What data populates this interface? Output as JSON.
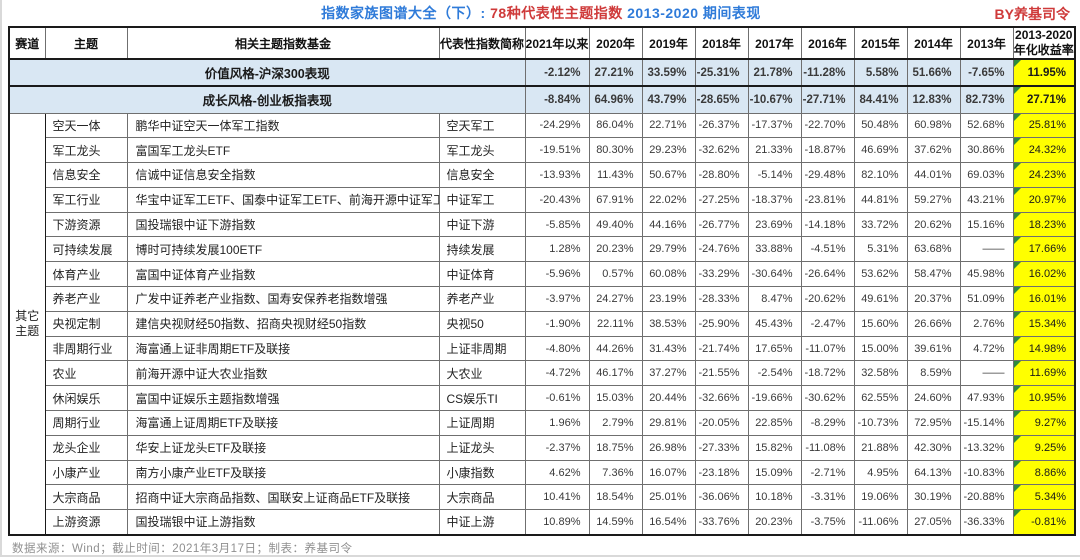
{
  "title": {
    "part1": "指数家族图谱大全（下）: ",
    "part2": "78种代表性主题指数",
    "part3": " 2013-2020 期间表现",
    "byline": "BY养基司令"
  },
  "colors": {
    "title_blue": "#2f7bd9",
    "title_red": "#cf3a3a",
    "banner_bg": "#d9e7f3",
    "highlight_yellow": "#ffff00",
    "positive_red": "#c94743",
    "negative_green": "#35a970",
    "flag_green": "#2e8b3d"
  },
  "footer": {
    "text": "数据来源：Wind；截止时间：2021年3月17日；制表：养基司令"
  },
  "chart_data": {
    "type": "table",
    "title": "指数家族图谱大全（下）: 78种代表性主题指数 2013-2020 期间表现",
    "text_headers": [
      "赛道",
      "主题",
      "相关主题指数基金",
      "代表性指数简称"
    ],
    "year_headers": [
      "2021年以来",
      "2020年",
      "2019年",
      "2018年",
      "2017年",
      "2016年",
      "2015年",
      "2014年",
      "2013年"
    ],
    "annual_header": {
      "line1": "2013-2020",
      "line2": "年化收益率"
    },
    "track": {
      "line1": "其它",
      "line2": "主题"
    },
    "banners": [
      {
        "label": "价值风格-沪深300表现",
        "values": [
          "-2.12%",
          "27.21%",
          "33.59%",
          "-25.31%",
          "21.78%",
          "-11.28%",
          "5.58%",
          "51.66%",
          "-7.65%"
        ],
        "annual": "11.95%",
        "flag": true
      },
      {
        "label": "成长风格-创业板指表现",
        "values": [
          "-8.84%",
          "64.96%",
          "43.79%",
          "-28.65%",
          "-10.67%",
          "-27.71%",
          "84.41%",
          "12.83%",
          "82.73%"
        ],
        "annual": "27.71%",
        "flag": true
      }
    ],
    "rows": [
      {
        "theme": "空天一体",
        "funds": "鹏华中证空天一体军工指数",
        "index": "空天军工",
        "values": [
          "-24.29%",
          "86.04%",
          "22.71%",
          "-26.37%",
          "-17.37%",
          "-22.70%",
          "50.48%",
          "60.98%",
          "52.68%"
        ],
        "annual": "25.81%",
        "flag": true
      },
      {
        "theme": "军工龙头",
        "funds": "富国军工龙头ETF",
        "index": "军工龙头",
        "values": [
          "-19.51%",
          "80.30%",
          "29.23%",
          "-32.62%",
          "21.33%",
          "-18.87%",
          "46.69%",
          "37.62%",
          "30.86%"
        ],
        "annual": "24.32%",
        "flag": true
      },
      {
        "theme": "信息安全",
        "funds": "信诚中证信息安全指数",
        "index": "信息安全",
        "values": [
          "-13.93%",
          "11.43%",
          "50.67%",
          "-28.80%",
          "-5.14%",
          "-29.48%",
          "82.10%",
          "44.01%",
          "69.03%"
        ],
        "annual": "24.23%",
        "flag": true
      },
      {
        "theme": "军工行业",
        "funds": "华宝中证军工ETF、国泰中证军工ETF、前海开源中证军工指数",
        "index": "中证军工",
        "values": [
          "-20.43%",
          "67.91%",
          "22.02%",
          "-27.25%",
          "-18.37%",
          "-23.81%",
          "44.81%",
          "59.27%",
          "43.21%"
        ],
        "annual": "20.97%",
        "flag": true
      },
      {
        "theme": "下游资源",
        "funds": "国投瑞银中证下游指数",
        "index": "中证下游",
        "values": [
          "-5.85%",
          "49.40%",
          "44.16%",
          "-26.77%",
          "23.69%",
          "-14.18%",
          "33.72%",
          "20.62%",
          "15.16%"
        ],
        "annual": "18.23%",
        "flag": true
      },
      {
        "theme": "可持续发展",
        "funds": "博时可持续发展100ETF",
        "index": "持续发展",
        "values": [
          "1.28%",
          "20.23%",
          "29.79%",
          "-24.76%",
          "33.88%",
          "-4.51%",
          "5.31%",
          "63.68%",
          "——"
        ],
        "annual": "17.66%",
        "flag": true
      },
      {
        "theme": "体育产业",
        "funds": "富国中证体育产业指数",
        "index": "中证体育",
        "values": [
          "-5.96%",
          "0.57%",
          "60.08%",
          "-33.29%",
          "-30.64%",
          "-26.64%",
          "53.62%",
          "58.47%",
          "45.98%"
        ],
        "annual": "16.02%",
        "flag": true
      },
      {
        "theme": "养老产业",
        "funds": "广发中证养老产业指数、国寿安保养老指数增强",
        "index": "养老产业",
        "values": [
          "-3.97%",
          "24.27%",
          "23.19%",
          "-28.33%",
          "8.47%",
          "-20.62%",
          "49.61%",
          "20.37%",
          "51.09%"
        ],
        "annual": "16.01%",
        "flag": true
      },
      {
        "theme": "央视定制",
        "funds": "建信央视财经50指数、招商央视财经50指数",
        "index": "央视50",
        "values": [
          "-1.90%",
          "22.11%",
          "38.53%",
          "-25.90%",
          "45.43%",
          "-2.47%",
          "15.60%",
          "26.66%",
          "2.76%"
        ],
        "annual": "15.34%",
        "flag": true
      },
      {
        "theme": "非周期行业",
        "funds": "海富通上证非周期ETF及联接",
        "index": "上证非周期",
        "values": [
          "-4.80%",
          "44.26%",
          "31.43%",
          "-21.74%",
          "17.65%",
          "-11.07%",
          "15.00%",
          "39.61%",
          "4.72%"
        ],
        "annual": "14.98%",
        "flag": true
      },
      {
        "theme": "农业",
        "funds": "前海开源中证大农业指数",
        "index": "大农业",
        "values": [
          "-4.72%",
          "46.17%",
          "37.27%",
          "-21.55%",
          "-2.54%",
          "-18.72%",
          "32.58%",
          "8.59%",
          "——"
        ],
        "annual": "11.69%",
        "flag": true
      },
      {
        "theme": "休闲娱乐",
        "funds": "富国中证娱乐主题指数增强",
        "index": "CS娱乐TI",
        "values": [
          "-0.61%",
          "15.03%",
          "20.44%",
          "-32.66%",
          "-19.66%",
          "-30.62%",
          "62.55%",
          "24.60%",
          "47.93%"
        ],
        "annual": "10.95%",
        "flag": true
      },
      {
        "theme": "周期行业",
        "funds": "海富通上证周期ETF及联接",
        "index": "上证周期",
        "values": [
          "1.96%",
          "2.79%",
          "29.81%",
          "-20.05%",
          "22.85%",
          "-8.29%",
          "-10.73%",
          "72.95%",
          "-15.14%"
        ],
        "annual": "9.27%",
        "flag": true
      },
      {
        "theme": "龙头企业",
        "funds": "华安上证龙头ETF及联接",
        "index": "上证龙头",
        "values": [
          "-2.37%",
          "18.75%",
          "26.98%",
          "-27.33%",
          "15.82%",
          "-11.08%",
          "21.88%",
          "42.30%",
          "-13.32%"
        ],
        "annual": "9.25%",
        "flag": true
      },
      {
        "theme": "小康产业",
        "funds": "南方小康产业ETF及联接",
        "index": "小康指数",
        "values": [
          "4.62%",
          "7.36%",
          "16.07%",
          "-23.18%",
          "15.09%",
          "-2.71%",
          "4.95%",
          "64.13%",
          "-10.83%"
        ],
        "annual": "8.86%",
        "flag": true
      },
      {
        "theme": "大宗商品",
        "funds": "招商中证大宗商品指数、国联安上证商品ETF及联接",
        "index": "大宗商品",
        "values": [
          "10.41%",
          "18.54%",
          "25.01%",
          "-36.06%",
          "10.18%",
          "-3.31%",
          "19.06%",
          "30.19%",
          "-20.88%"
        ],
        "annual": "5.34%",
        "flag": true
      },
      {
        "theme": "上游资源",
        "funds": "国投瑞银中证上游指数",
        "index": "中证上游",
        "values": [
          "10.89%",
          "14.59%",
          "16.54%",
          "-33.76%",
          "20.23%",
          "-3.75%",
          "-11.06%",
          "27.05%",
          "-36.33%"
        ],
        "annual": "-0.81%",
        "flag": true
      }
    ]
  }
}
